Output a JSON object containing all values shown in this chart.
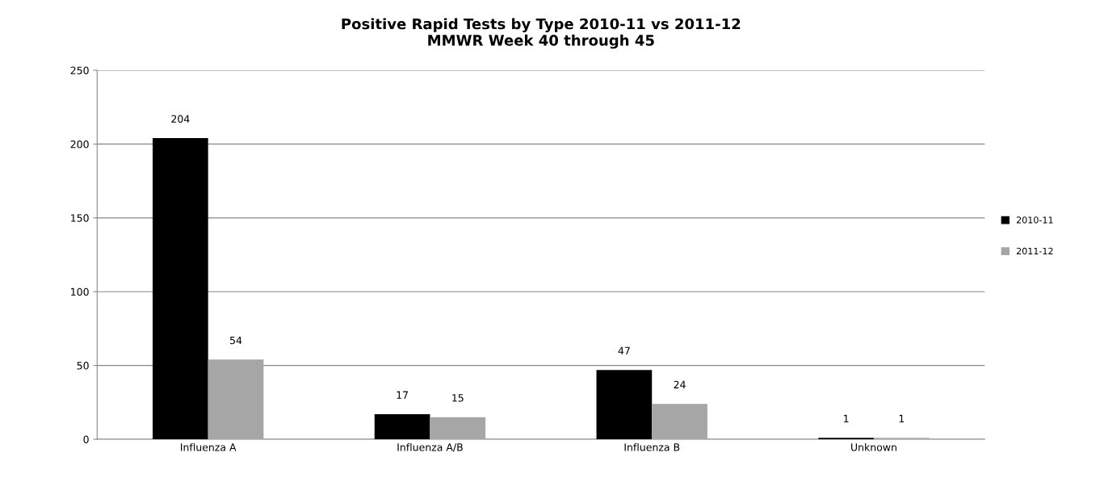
{
  "chart_data": {
    "type": "bar",
    "title": "Positive Rapid Tests by Type 2010-11 vs 2011-12",
    "subtitle": "MMWR Week 40 through 45",
    "categories": [
      "Influenza A",
      "Influenza A/B",
      "Influenza B",
      "Unknown"
    ],
    "series": [
      {
        "name": "2010-11",
        "color": "#000000",
        "values": [
          204,
          17,
          47,
          1
        ]
      },
      {
        "name": "2011-12",
        "color": "#a6a6a6",
        "values": [
          54,
          15,
          24,
          1
        ]
      }
    ],
    "ylim": [
      0,
      250
    ],
    "yticks": [
      0,
      50,
      100,
      150,
      200,
      250
    ],
    "grid": "y",
    "legend": "right",
    "data_labels": true
  }
}
